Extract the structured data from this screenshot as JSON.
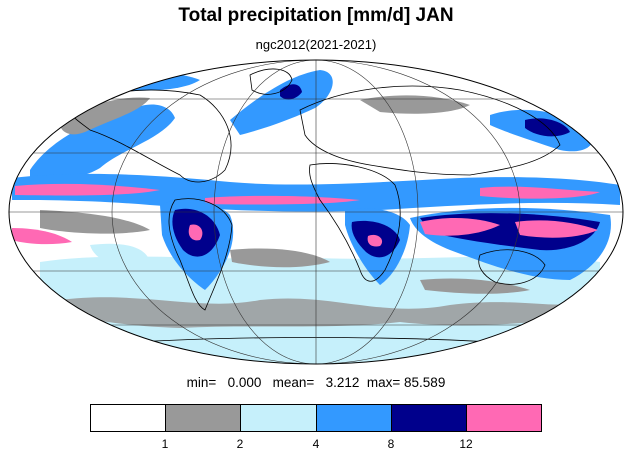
{
  "title": "Total precipitation [mm/d] JAN",
  "subtitle": "ngc2012(2021-2021)",
  "stats": {
    "min_label": "min=",
    "min_value": "0.000",
    "mean_label": "mean=",
    "mean_value": "3.212",
    "max_label": "max=",
    "max_value": "85.589"
  },
  "colorbar": {
    "colors": [
      "#ffffff",
      "#999999",
      "#c6f0fb",
      "#3399ff",
      "#00008c",
      "#ff69b4"
    ],
    "tick_labels": [
      "1",
      "2",
      "4",
      "8",
      "12"
    ]
  },
  "map": {
    "projection": "mollweide",
    "meridian_spacing_deg": 60,
    "parallel_spacing_deg": 30
  }
}
